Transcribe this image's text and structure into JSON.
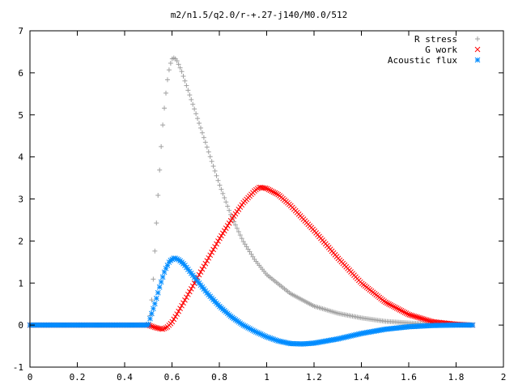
{
  "chart_data": {
    "type": "scatter",
    "title": "m2/n1.5/q2.0/r-+.27-j140/M0.0/512",
    "xlabel": "",
    "ylabel": "",
    "xlim": [
      0,
      2
    ],
    "ylim": [
      -1,
      7
    ],
    "x_ticks": [
      "0",
      "0.2",
      "0.4",
      "0.6",
      "0.8",
      "1",
      "1.2",
      "1.4",
      "1.6",
      "1.8",
      "2"
    ],
    "y_ticks": [
      "-1",
      "0",
      "1",
      "2",
      "3",
      "4",
      "5",
      "6",
      "7"
    ],
    "grid": false,
    "legend_position": "top-right",
    "x_range": [
      0,
      1.87
    ],
    "series": [
      {
        "name": "R stress",
        "marker": "plus",
        "color": "#a0a0a0",
        "points": [
          [
            0,
            0
          ],
          [
            0.5,
            0
          ],
          [
            0.51,
            0.3
          ],
          [
            0.52,
            1.0
          ],
          [
            0.53,
            2.0
          ],
          [
            0.54,
            3.0
          ],
          [
            0.55,
            3.9
          ],
          [
            0.56,
            4.7
          ],
          [
            0.57,
            5.3
          ],
          [
            0.58,
            5.8
          ],
          [
            0.59,
            6.15
          ],
          [
            0.6,
            6.33
          ],
          [
            0.61,
            6.36
          ],
          [
            0.62,
            6.3
          ],
          [
            0.64,
            6.05
          ],
          [
            0.67,
            5.55
          ],
          [
            0.7,
            5.05
          ],
          [
            0.75,
            4.2
          ],
          [
            0.8,
            3.35
          ],
          [
            0.85,
            2.6
          ],
          [
            0.9,
            2.0
          ],
          [
            0.95,
            1.55
          ],
          [
            1.0,
            1.2
          ],
          [
            1.1,
            0.75
          ],
          [
            1.2,
            0.45
          ],
          [
            1.3,
            0.28
          ],
          [
            1.4,
            0.17
          ],
          [
            1.5,
            0.09
          ],
          [
            1.6,
            0.05
          ],
          [
            1.7,
            0.02
          ],
          [
            1.87,
            0
          ]
        ]
      },
      {
        "name": "G work",
        "marker": "cross",
        "color": "#ff0000",
        "points": [
          [
            0,
            0
          ],
          [
            0.5,
            0
          ],
          [
            0.53,
            -0.06
          ],
          [
            0.56,
            -0.1
          ],
          [
            0.58,
            -0.05
          ],
          [
            0.6,
            0.07
          ],
          [
            0.62,
            0.25
          ],
          [
            0.65,
            0.55
          ],
          [
            0.7,
            1.05
          ],
          [
            0.75,
            1.55
          ],
          [
            0.8,
            2.05
          ],
          [
            0.85,
            2.5
          ],
          [
            0.9,
            2.9
          ],
          [
            0.95,
            3.2
          ],
          [
            0.97,
            3.28
          ],
          [
            1.0,
            3.25
          ],
          [
            1.05,
            3.1
          ],
          [
            1.1,
            2.85
          ],
          [
            1.2,
            2.25
          ],
          [
            1.3,
            1.6
          ],
          [
            1.4,
            1.0
          ],
          [
            1.5,
            0.55
          ],
          [
            1.6,
            0.25
          ],
          [
            1.7,
            0.08
          ],
          [
            1.8,
            0.02
          ],
          [
            1.87,
            0
          ]
        ]
      },
      {
        "name": "Acoustic flux",
        "marker": "star",
        "color": "#008cff",
        "points": [
          [
            0,
            0
          ],
          [
            0.5,
            0
          ],
          [
            0.51,
            0.2
          ],
          [
            0.53,
            0.55
          ],
          [
            0.55,
            0.95
          ],
          [
            0.57,
            1.3
          ],
          [
            0.59,
            1.52
          ],
          [
            0.61,
            1.6
          ],
          [
            0.63,
            1.55
          ],
          [
            0.65,
            1.45
          ],
          [
            0.7,
            1.1
          ],
          [
            0.75,
            0.75
          ],
          [
            0.8,
            0.45
          ],
          [
            0.85,
            0.2
          ],
          [
            0.9,
            0.0
          ],
          [
            0.95,
            -0.15
          ],
          [
            1.0,
            -0.28
          ],
          [
            1.05,
            -0.38
          ],
          [
            1.1,
            -0.44
          ],
          [
            1.15,
            -0.45
          ],
          [
            1.2,
            -0.43
          ],
          [
            1.3,
            -0.33
          ],
          [
            1.4,
            -0.2
          ],
          [
            1.5,
            -0.1
          ],
          [
            1.6,
            -0.04
          ],
          [
            1.7,
            -0.01
          ],
          [
            1.8,
            0
          ],
          [
            1.87,
            0
          ]
        ]
      }
    ]
  },
  "colors": {
    "axis": "#000000",
    "background": "#ffffff"
  }
}
